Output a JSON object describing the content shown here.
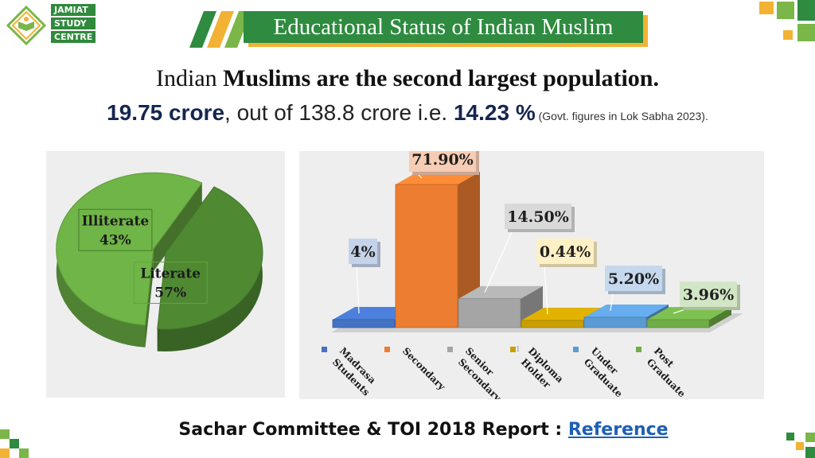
{
  "logo": {
    "lines": [
      "JAMIAT",
      "STUDY",
      "CENTRE"
    ]
  },
  "title": "Educational Status of Indian Muslim",
  "headline": {
    "line1_prefix": "Indian ",
    "line1_bold": "Muslims are the second largest population.",
    "line2_bold1": "19.75 crore",
    "line2_mid": ", out of 138.8 crore i.e. ",
    "line2_bold2": "14.23 %",
    "line2_note": " (Govt. figures in Lok Sabha 2023)."
  },
  "chart_data": [
    {
      "type": "pie",
      "labels": [
        "Illiterate",
        "Literate"
      ],
      "values": [
        43,
        57
      ],
      "value_labels": [
        "43%",
        "57%"
      ],
      "colors": [
        "#4f8a33",
        "#6fb547"
      ],
      "style": "3d-exploded"
    },
    {
      "type": "bar",
      "style": "3d",
      "categories": [
        [
          "Madrasa",
          "Students"
        ],
        [
          "Secondary"
        ],
        [
          "Senior",
          "Secondary"
        ],
        [
          "Diploma",
          "Holder"
        ],
        [
          "Under",
          "Graduate"
        ],
        [
          "Post",
          "Graduate"
        ]
      ],
      "values": [
        4,
        71.9,
        14.5,
        0.44,
        5.2,
        3.96
      ],
      "value_labels": [
        "4%",
        "71.90%",
        "14.50%",
        "0.44%",
        "5.20%",
        "3.96%"
      ],
      "colors": [
        "#4472c4",
        "#ed7d31",
        "#a5a5a5",
        "#c9a000",
        "#5b9bd5",
        "#70ad47"
      ],
      "label_fills": [
        "#c5d3ea",
        "#f6cdb4",
        "#d9d9d9",
        "#fdf0c4",
        "#c6d8ee",
        "#d2e6c6"
      ],
      "legend": "bottom",
      "axis_text": "1"
    }
  ],
  "footer": {
    "text": "Sachar Committee & TOI 2018 Report : ",
    "link": "Reference"
  }
}
